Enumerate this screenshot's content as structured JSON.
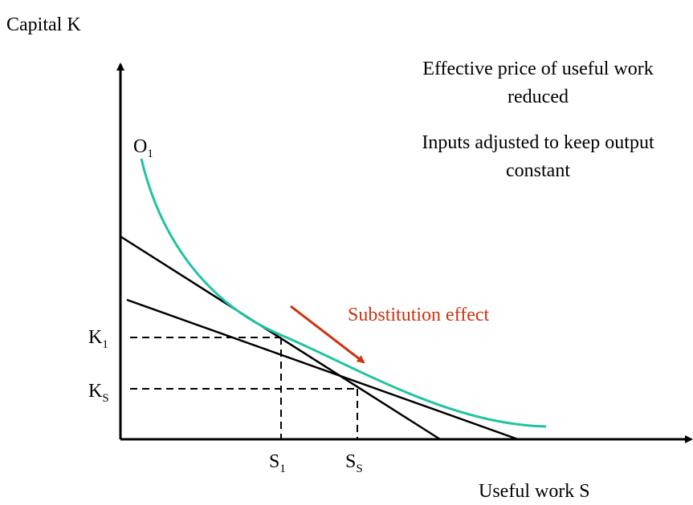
{
  "axes": {
    "y_label": "Capital K",
    "x_label": "Useful work S"
  },
  "annotations": [
    "Effective price of useful work",
    "reduced",
    "Inputs adjusted to keep output",
    "constant"
  ],
  "curve_label": {
    "main": "O",
    "sub": "1"
  },
  "effect_label": "Substitution effect",
  "points": {
    "k1": {
      "main": "K",
      "sub": "1"
    },
    "ks": {
      "main": "K",
      "sub": "S"
    },
    "s1": {
      "main": "S",
      "sub": "1"
    },
    "ss": {
      "main": "S",
      "sub": "S"
    }
  }
}
